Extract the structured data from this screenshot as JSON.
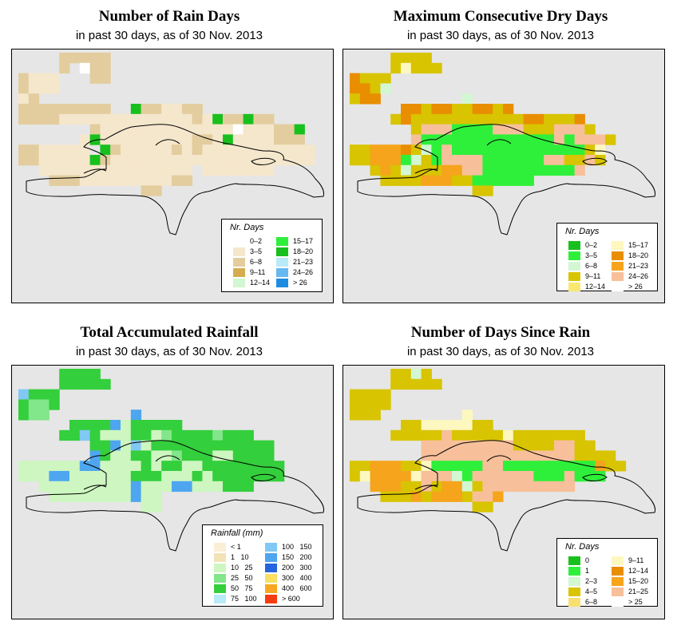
{
  "panels": [
    {
      "id": "rain-days",
      "title": "Number of Rain Days",
      "subtitle": "in past 30 days, as of  30 Nov. 2013",
      "legend": {
        "title": "Nr. Days",
        "items": [
          {
            "label": "0–2",
            "color": "#ffffff"
          },
          {
            "label": "3–5",
            "color": "#f5e7cc"
          },
          {
            "label": "6–8",
            "color": "#e3cd9e"
          },
          {
            "label": "9–11",
            "color": "#d4ad4e"
          },
          {
            "label": "12–14",
            "color": "#d2f7d2"
          },
          {
            "label": "15–17",
            "color": "#2ef03a"
          },
          {
            "label": "18–20",
            "color": "#18c01e"
          },
          {
            "label": "21–23",
            "color": "#b8eaf8"
          },
          {
            "label": "24–26",
            "color": "#66b8f0"
          },
          {
            "label": "> 26",
            "color": "#1e8ce0"
          }
        ]
      },
      "grid_values": [
        "....#####.......................",
        "....#/*##.......................",
        "#%%%...##.......................",
        "#%%%............................",
        "%#..........~...................",
        "#########/~+##%%##..............",
        "####%%%%%%%%%%%%%#%+##+##/......",
        ".......#%%%%%%%%%%%%%*%%%##+....",
        "......%+%%%%%%%%%##%+%%%%###....",
        "##%%%%%~+#%%%%%#%#%%%%%%%%%%%...",
        "##%%%%%+#%%%%%%%%%%%%%%%%%%%%...",
        "..%%%%%%%%%%%%%%%.%%%%%%%.......",
        "...###%%%%%%%%%##...............",
        "............##.................."
      ],
      "grid_key": [
        "#f5e7cc",
        "#e3cd9e",
        "#d4ad4e",
        "#d2f7d2",
        "#2ef03a",
        "#18c01e",
        "#ffffff"
      ]
    },
    {
      "id": "max-dry-days",
      "title": "Maximum Consecutive Dry Days",
      "subtitle": "in past 30 days, as of  30 Nov. 2013",
      "legend": {
        "title": "Nr. Days",
        "items": [
          {
            "label": "0–2",
            "color": "#18c01e"
          },
          {
            "label": "3–5",
            "color": "#2ef03a"
          },
          {
            "label": "6–8",
            "color": "#d2f7d2"
          },
          {
            "label": "9–11",
            "color": "#d8c400"
          },
          {
            "label": "12–14",
            "color": "#f8e870"
          },
          {
            "label": "15–17",
            "color": "#fdf7c0"
          },
          {
            "label": "18–20",
            "color": "#e88e00"
          },
          {
            "label": "21–23",
            "color": "#f5a41c"
          },
          {
            "label": "24–26",
            "color": "#f7c09a"
          },
          {
            "label": "> 26",
            "color": "#ffffff"
          }
        ]
      },
      "grid_values": [
        "....%%%%........................",
        "....%*%%%.......................",
        "#%%%............................",
        "##%+............................",
        "%##........+....................",
        ".....##%##%%##%#................",
        "....%#%%%%%%%%%%%##%%%#.........",
        "......%$$$@@@@$$$%%%$$$%.......",
        "......$@@@@@@@@@@@@@$@$$$%......",
        "%%&&&#%+@$@@@@@@@@@@@@@%*.......",
        "%%&&&@+%@$$$$@@@@@@$$%%$%.......",
        "..%&%+%%%&&$$@@@@@@@@@$........",
        "...%%%%&&&%%@@@@@@..............",
        "............%%..................."
      ],
      "grid_key": [
        "#d8c400",
        "#e88e00",
        "#f5a41c",
        "#f7c09a",
        "#2ef03a",
        "#d2f7d2",
        "#fdf7c0"
      ]
    },
    {
      "id": "total-rainfall",
      "title": "Total Accumulated Rainfall",
      "subtitle": "in past 30 days, as of  30 Nov. 2013",
      "legend": {
        "title": "Rainfall (mm)",
        "items": [
          {
            "low": "< 1",
            "high": "",
            "color": "#fbeed6"
          },
          {
            "low": "1",
            "high": "10",
            "color": "#f2e2b8"
          },
          {
            "low": "10",
            "high": "25",
            "color": "#cdf6c0"
          },
          {
            "low": "25",
            "high": "50",
            "color": "#82e68a"
          },
          {
            "low": "50",
            "high": "75",
            "color": "#34cf3c"
          },
          {
            "low": "75",
            "high": "100",
            "color": "#b8eaf8"
          },
          {
            "low": "100",
            "high": "150",
            "color": "#82c8f4"
          },
          {
            "low": "150",
            "high": "200",
            "color": "#4ea6f0"
          },
          {
            "low": "200",
            "high": "300",
            "color": "#2464dc"
          },
          {
            "low": "300",
            "high": "400",
            "color": "#f8e060"
          },
          {
            "low": "400",
            "high": "600",
            "color": "#f8a820"
          },
          {
            "low": "> 600",
            "high": "",
            "color": "#f43c10"
          }
        ]
      },
      "grid_values": [
        "....%%%%........................",
        "....%%%%%.......................",
        "$%%%............................",
        "%##%............................",
        "%##........@....................",
        ".....%%%%@&%%%%%................",
        "....%%$%&&&%%&#%%%%#%%%.........",
        ".......%%@&$&%%%%%%%%%%%%.......",
        ".......@%&&%%&&#%%%&&%%%%.......",
        "&&&&&&@@&&&&%&%%&&%%%%%%%%......",
        "&&&@@&&&&&&%%%&&&%&%%%%%%%......",
        "..&&&&&&&&&@&&&@@&&&%%%.........",
        "...&&&&&&&&@&&..................",
        "............&&..................."
      ],
      "grid_key": [
        "#34cf3c",
        "#82e68a",
        "#cdf6c0",
        "#82c8f4",
        "#4ea6f0",
        "#f2e2b8",
        "#fbeed6"
      ]
    },
    {
      "id": "days-since-rain",
      "title": "Number of Days Since Rain",
      "subtitle": "in past 30 days, as of  30 Nov. 2013",
      "legend": {
        "title": "Nr. Days",
        "items": [
          {
            "label": "0",
            "color": "#18c01e"
          },
          {
            "label": "1",
            "color": "#2ef03a"
          },
          {
            "label": "2–3",
            "color": "#d2f7d2"
          },
          {
            "label": "4–5",
            "color": "#d8c400"
          },
          {
            "label": "6–8",
            "color": "#f8e070"
          },
          {
            "label": "9–11",
            "color": "#fdf7c0"
          },
          {
            "label": "12–14",
            "color": "#e88e00"
          },
          {
            "label": "15–20",
            "color": "#f5a41c"
          },
          {
            "label": "21–25",
            "color": "#f7c09a"
          },
          {
            "label": "> 25",
            "color": "#ffffff"
          }
        ]
      },
      "grid_values": [
        "....%%+%........................",
        "....%%%%%.......................",
        "%%%%............................",
        "%%%%............................",
        "%%%........*....................",
        ".....%%*****%%..................",
        "....%%%%%$%%%%%*%%%%%%%.........",
        ".......$$$$$$$$$%%%%$$%%.......",
        ".......$$$$$$$$$$$$$$$%%%%......",
        "%%&&&%%*@@@@@$$@@@@@@@@@&%%.....",
        "%*&&&&*$$$+@$$$$$$@@@$@@@.......",
        "..&&&%%$%&&+%$$$$$$$$$.........",
        "...%%%&%&&&%$$&................",
        "............%%..................."
      ],
      "grid_key": [
        "#d8c400",
        "#e88e00",
        "#f5a41c",
        "#f7c09a",
        "#2ef03a",
        "#d2f7d2",
        "#fdf7c0"
      ]
    }
  ]
}
